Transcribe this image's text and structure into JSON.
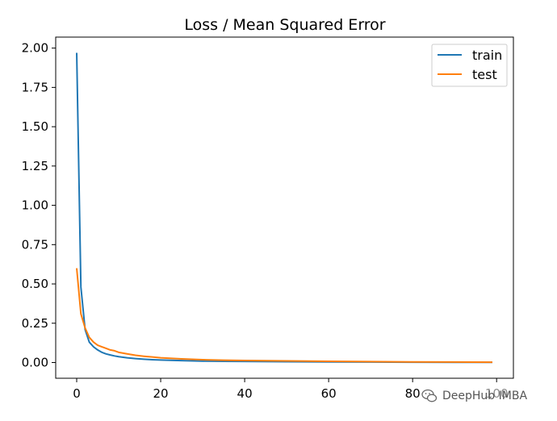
{
  "watermark": {
    "text": "DeepHub IMBA",
    "icon": "wechat-icon"
  },
  "chart_data": {
    "type": "line",
    "title": "Loss / Mean Squared Error",
    "xlabel": "",
    "ylabel": "",
    "xlim": [
      -5,
      104
    ],
    "ylim": [
      -0.1,
      2.07
    ],
    "xticks": [
      0,
      20,
      40,
      60,
      80,
      100
    ],
    "xtick_labels": [
      "0",
      "20",
      "40",
      "60",
      "80",
      "100"
    ],
    "yticks": [
      0.0,
      0.25,
      0.5,
      0.75,
      1.0,
      1.25,
      1.5,
      1.75,
      2.0
    ],
    "ytick_labels": [
      "0.00",
      "0.25",
      "0.50",
      "0.75",
      "1.00",
      "1.25",
      "1.50",
      "1.75",
      "2.00"
    ],
    "grid": false,
    "legend_position": "top-right",
    "x": [
      0,
      1,
      2,
      3,
      4,
      5,
      6,
      7,
      8,
      9,
      10,
      12,
      14,
      16,
      18,
      20,
      25,
      30,
      35,
      40,
      50,
      60,
      70,
      80,
      90,
      99
    ],
    "series": [
      {
        "name": "train",
        "color": "#1f77b4",
        "values": [
          1.97,
          0.48,
          0.21,
          0.13,
          0.1,
          0.08,
          0.065,
          0.055,
          0.048,
          0.042,
          0.037,
          0.03,
          0.025,
          0.021,
          0.018,
          0.016,
          0.012,
          0.009,
          0.008,
          0.007,
          0.005,
          0.004,
          0.003,
          0.002,
          0.0015,
          0.001
        ]
      },
      {
        "name": "test",
        "color": "#ff7f0e",
        "values": [
          0.6,
          0.31,
          0.22,
          0.16,
          0.13,
          0.11,
          0.1,
          0.09,
          0.08,
          0.075,
          0.065,
          0.055,
          0.046,
          0.04,
          0.035,
          0.03,
          0.023,
          0.018,
          0.015,
          0.013,
          0.01,
          0.008,
          0.006,
          0.004,
          0.003,
          0.002
        ]
      }
    ]
  }
}
